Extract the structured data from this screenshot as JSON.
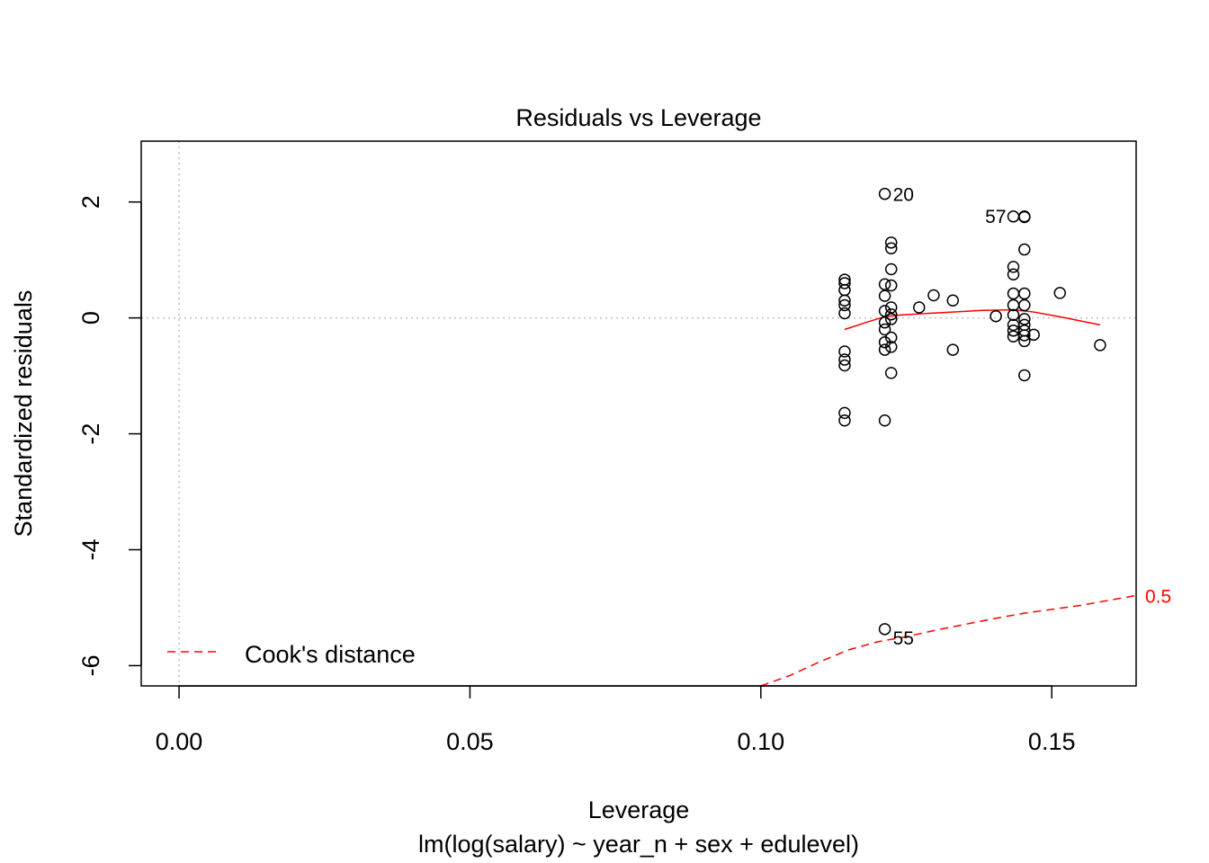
{
  "chart_data": {
    "type": "scatter",
    "title": "Residuals vs Leverage",
    "xlabel": "Leverage",
    "ylabel": "Standardized residuals",
    "subtitle": "lm(log(salary) ~ year_n + sex + edulevel)",
    "xlim": [
      -0.0065,
      0.1645
    ],
    "ylim": [
      -6.35,
      3.05
    ],
    "xticks": [
      0.0,
      0.05,
      0.1,
      0.15
    ],
    "xtick_labels": [
      "0.00",
      "0.05",
      "0.10",
      "0.15"
    ],
    "yticks": [
      -6,
      -4,
      -2,
      0,
      2
    ],
    "ytick_labels": [
      "-6",
      "-4",
      "-2",
      "0",
      "2"
    ],
    "grid": false,
    "reference_lines": {
      "x": 0,
      "y": 0
    },
    "legend": {
      "position": "bottom-left",
      "label": "Cook's distance"
    },
    "colors": {
      "points": "#000000",
      "smooth": "#ff0000",
      "cooks": "#ff0000",
      "reference": "#bebebe"
    },
    "points": [
      {
        "x": 0.1144,
        "y": 0.66
      },
      {
        "x": 0.1144,
        "y": 0.6
      },
      {
        "x": 0.1144,
        "y": 0.48
      },
      {
        "x": 0.1144,
        "y": 0.3
      },
      {
        "x": 0.1144,
        "y": 0.22
      },
      {
        "x": 0.1144,
        "y": 0.08
      },
      {
        "x": 0.1144,
        "y": -0.58
      },
      {
        "x": 0.1144,
        "y": -0.72
      },
      {
        "x": 0.1144,
        "y": -0.82
      },
      {
        "x": 0.1144,
        "y": -1.64
      },
      {
        "x": 0.1144,
        "y": -1.77
      },
      {
        "x": 0.1213,
        "y": 2.14
      },
      {
        "x": 0.1213,
        "y": 0.58
      },
      {
        "x": 0.1213,
        "y": 0.38
      },
      {
        "x": 0.1213,
        "y": 0.12
      },
      {
        "x": 0.1213,
        "y": -0.08
      },
      {
        "x": 0.1213,
        "y": -0.2
      },
      {
        "x": 0.1213,
        "y": -0.42
      },
      {
        "x": 0.1213,
        "y": -0.55
      },
      {
        "x": 0.1213,
        "y": -1.77
      },
      {
        "x": 0.1213,
        "y": -5.37
      },
      {
        "x": 0.1224,
        "y": 1.3
      },
      {
        "x": 0.1224,
        "y": 1.2
      },
      {
        "x": 0.1224,
        "y": 0.84
      },
      {
        "x": 0.1224,
        "y": 0.56
      },
      {
        "x": 0.1224,
        "y": 0.18
      },
      {
        "x": 0.1224,
        "y": 0.06
      },
      {
        "x": 0.1224,
        "y": -0.02
      },
      {
        "x": 0.1224,
        "y": -0.34
      },
      {
        "x": 0.1224,
        "y": -0.5
      },
      {
        "x": 0.1224,
        "y": -0.95
      },
      {
        "x": 0.1272,
        "y": 0.18
      },
      {
        "x": 0.1297,
        "y": 0.39
      },
      {
        "x": 0.133,
        "y": 0.3
      },
      {
        "x": 0.133,
        "y": -0.55
      },
      {
        "x": 0.1404,
        "y": 0.03
      },
      {
        "x": 0.1434,
        "y": 1.75
      },
      {
        "x": 0.1434,
        "y": 0.88
      },
      {
        "x": 0.1434,
        "y": 0.75
      },
      {
        "x": 0.1434,
        "y": 0.42
      },
      {
        "x": 0.1434,
        "y": 0.22
      },
      {
        "x": 0.1434,
        "y": 0.05
      },
      {
        "x": 0.1434,
        "y": -0.12
      },
      {
        "x": 0.1434,
        "y": -0.22
      },
      {
        "x": 0.1434,
        "y": -0.32
      },
      {
        "x": 0.1453,
        "y": 1.75
      },
      {
        "x": 0.1453,
        "y": 1.74
      },
      {
        "x": 0.1453,
        "y": 1.18
      },
      {
        "x": 0.1453,
        "y": 0.42
      },
      {
        "x": 0.1453,
        "y": 0.22
      },
      {
        "x": 0.1453,
        "y": -0.02
      },
      {
        "x": 0.1453,
        "y": -0.12
      },
      {
        "x": 0.1453,
        "y": -0.22
      },
      {
        "x": 0.1453,
        "y": -0.3
      },
      {
        "x": 0.1453,
        "y": -0.4
      },
      {
        "x": 0.1453,
        "y": -0.99
      },
      {
        "x": 0.1469,
        "y": -0.29
      },
      {
        "x": 0.1514,
        "y": 0.43
      },
      {
        "x": 0.1583,
        "y": -0.47
      }
    ],
    "point_labels": [
      {
        "text": "20",
        "x": 0.1213,
        "y": 2.14
      },
      {
        "text": "57",
        "x": 0.1434,
        "y": 1.75
      },
      {
        "text": "55",
        "x": 0.1213,
        "y": -5.37
      }
    ],
    "smooth_line": [
      {
        "x": 0.1144,
        "y": -0.2
      },
      {
        "x": 0.118,
        "y": -0.08
      },
      {
        "x": 0.1213,
        "y": 0.02
      },
      {
        "x": 0.124,
        "y": 0.05
      },
      {
        "x": 0.129,
        "y": 0.08
      },
      {
        "x": 0.133,
        "y": 0.1
      },
      {
        "x": 0.138,
        "y": 0.13
      },
      {
        "x": 0.1434,
        "y": 0.14
      },
      {
        "x": 0.147,
        "y": 0.1
      },
      {
        "x": 0.1514,
        "y": 0.02
      },
      {
        "x": 0.1583,
        "y": -0.12
      }
    ],
    "cooks_distance": {
      "level_label": "0.5",
      "curve": [
        {
          "x": 0.1,
          "y": -6.42
        },
        {
          "x": 0.105,
          "y": -6.17
        },
        {
          "x": 0.11,
          "y": -5.94
        },
        {
          "x": 0.115,
          "y": -5.73
        },
        {
          "x": 0.12,
          "y": -5.59
        },
        {
          "x": 0.125,
          "y": -5.5
        },
        {
          "x": 0.13,
          "y": -5.39
        },
        {
          "x": 0.135,
          "y": -5.29
        },
        {
          "x": 0.14,
          "y": -5.19
        },
        {
          "x": 0.145,
          "y": -5.1
        },
        {
          "x": 0.15,
          "y": -5.03
        },
        {
          "x": 0.155,
          "y": -4.96
        },
        {
          "x": 0.16,
          "y": -4.87
        },
        {
          "x": 0.1645,
          "y": -4.79
        }
      ]
    }
  }
}
